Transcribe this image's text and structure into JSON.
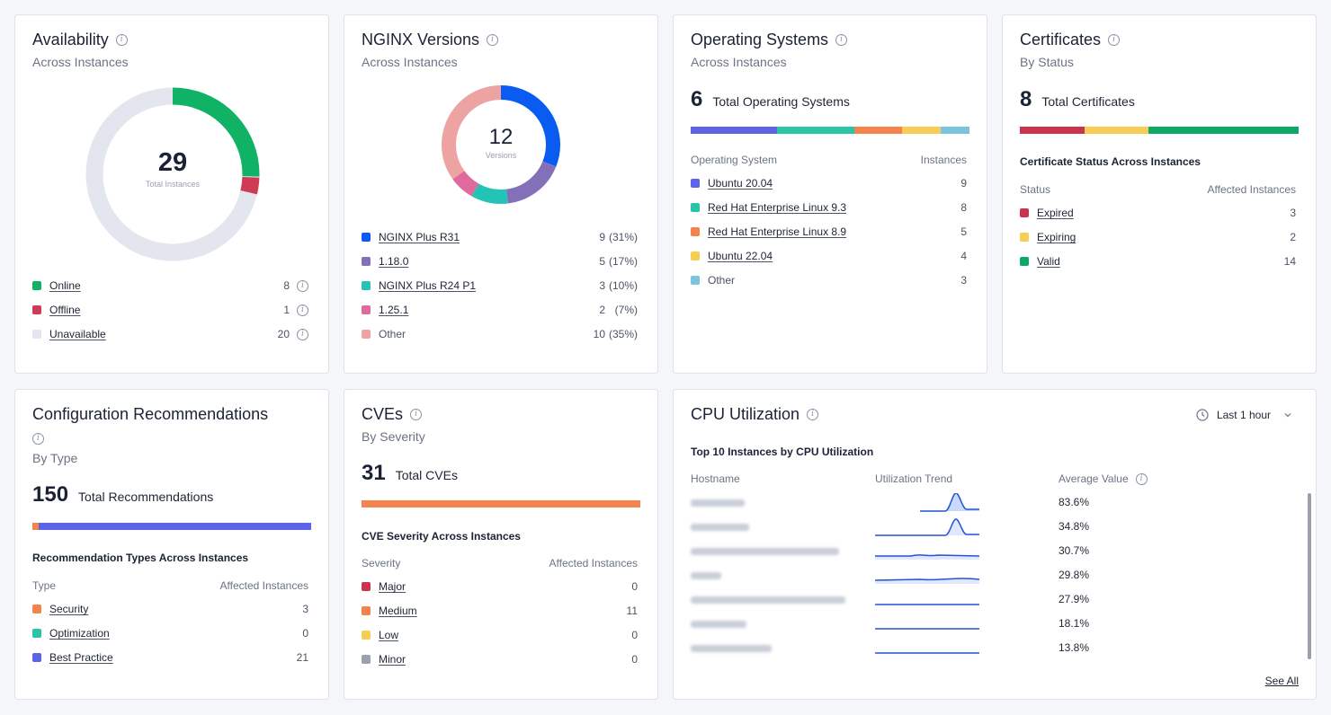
{
  "availability": {
    "title": "Availability",
    "subtitle": "Across Instances",
    "total": "29",
    "total_label": "Total Instances",
    "items": [
      {
        "label": "Online",
        "value": "8",
        "color": "#10b265"
      },
      {
        "label": "Offline",
        "value": "1",
        "color": "#d13a55"
      },
      {
        "label": "Unavailable",
        "value": "20",
        "color": "#e3e6ee"
      }
    ]
  },
  "nginx": {
    "title": "NGINX Versions",
    "subtitle": "Across Instances",
    "total": "12",
    "total_label": "Versions",
    "items": [
      {
        "label": "NGINX Plus R31",
        "value": "9",
        "pct": "(31%)",
        "color": "#0a5bf2"
      },
      {
        "label": "1.18.0",
        "value": "5",
        "pct": "(17%)",
        "color": "#8470b8"
      },
      {
        "label": "NGINX Plus R24 P1",
        "value": "3",
        "pct": "(10%)",
        "color": "#23c3b5"
      },
      {
        "label": "1.25.1",
        "value": "2",
        "pct": "(7%)",
        "color": "#df6a9b"
      },
      {
        "label": "Other",
        "value": "10",
        "pct": "(35%)",
        "color": "#eea3a3"
      }
    ]
  },
  "os": {
    "title": "Operating Systems",
    "subtitle": "Across Instances",
    "total": "6",
    "total_label": "Total Operating Systems",
    "col_left": "Operating System",
    "col_right": "Instances",
    "items": [
      {
        "label": "Ubuntu 20.04",
        "value": "9",
        "color": "#5b63e8"
      },
      {
        "label": "Red Hat Enterprise Linux 9.3",
        "value": "8",
        "color": "#2bc4a5"
      },
      {
        "label": "Red Hat Enterprise Linux 8.9",
        "value": "5",
        "color": "#f4834d"
      },
      {
        "label": "Ubuntu 22.04",
        "value": "4",
        "color": "#f7cd55"
      },
      {
        "label": "Other",
        "value": "3",
        "color": "#7cc3dd"
      }
    ]
  },
  "certs": {
    "title": "Certificates",
    "subtitle": "By Status",
    "total": "8",
    "total_label": "Total Certificates",
    "section": "Certificate Status Across Instances",
    "col_left": "Status",
    "col_right": "Affected Instances",
    "items": [
      {
        "label": "Expired",
        "value": "3",
        "color": "#c9334e"
      },
      {
        "label": "Expiring",
        "value": "2",
        "color": "#f7cd55"
      },
      {
        "label": "Valid",
        "value": "14",
        "color": "#10a866"
      }
    ]
  },
  "config": {
    "title": "Configuration Recommendations",
    "subtitle": "By Type",
    "total": "150",
    "total_label": "Total Recommendations",
    "section": "Recommendation Types Across Instances",
    "col_left": "Type",
    "col_right": "Affected Instances",
    "items": [
      {
        "label": "Security",
        "value": "3",
        "color": "#f4834d"
      },
      {
        "label": "Optimization",
        "value": "0",
        "color": "#2bc4a5"
      },
      {
        "label": "Best Practice",
        "value": "21",
        "color": "#5b63e8"
      }
    ]
  },
  "cves": {
    "title": "CVEs",
    "subtitle": "By Severity",
    "total": "31",
    "total_label": "Total CVEs",
    "section": "CVE Severity Across Instances",
    "col_left": "Severity",
    "col_right": "Affected Instances",
    "items": [
      {
        "label": "Major",
        "value": "0",
        "color": "#c9334e"
      },
      {
        "label": "Medium",
        "value": "11",
        "color": "#f4834d"
      },
      {
        "label": "Low",
        "value": "0",
        "color": "#f7cd55"
      },
      {
        "label": "Minor",
        "value": "0",
        "color": "#9aa1ad"
      }
    ]
  },
  "cpu": {
    "title": "CPU Utilization",
    "time_range": "Last 1 hour",
    "section": "Top 10 Instances by CPU Utilization",
    "col_host": "Hostname",
    "col_trend": "Utilization Trend",
    "col_avg": "Average Value",
    "see_all": "See All",
    "rows": [
      {
        "avg": "83.6%"
      },
      {
        "avg": "34.8%"
      },
      {
        "avg": "30.7%"
      },
      {
        "avg": "29.8%"
      },
      {
        "avg": "27.9%"
      },
      {
        "avg": "18.1%"
      },
      {
        "avg": "13.8%"
      }
    ]
  }
}
